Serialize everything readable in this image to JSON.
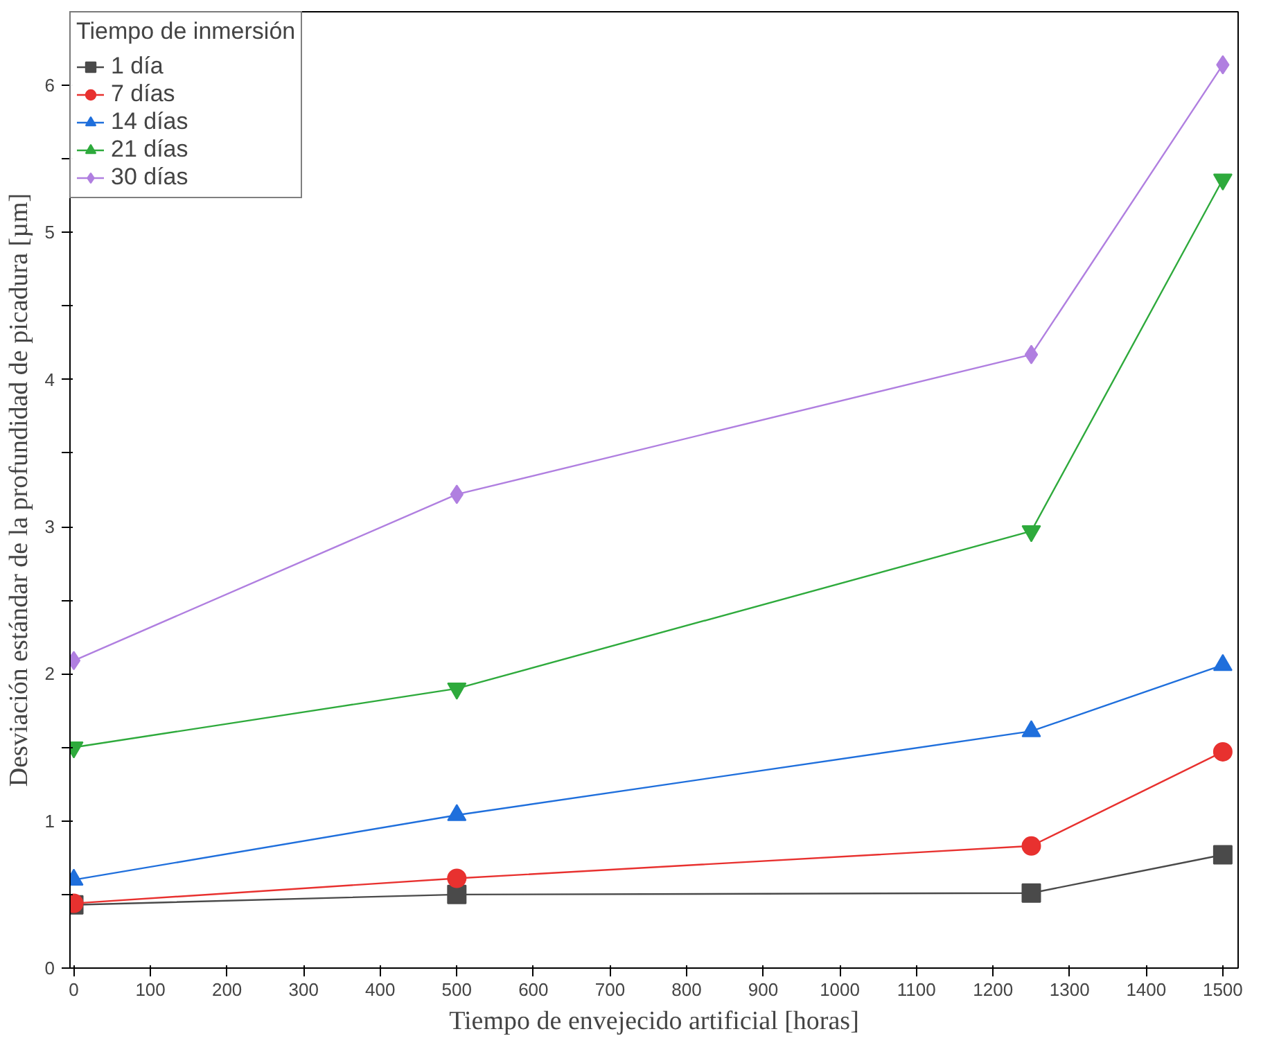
{
  "chart_data": {
    "type": "line",
    "xlabel": "Tiempo de envejecido artificial [horas]",
    "ylabel": "Desviación estándar de la profundidad de picadura [µm]",
    "legend_title": "Tiempo de inmersión",
    "x": [
      0,
      500,
      1250,
      1500
    ],
    "series": [
      {
        "name": "1 día",
        "color": "#4a4a4a",
        "marker": "square",
        "values": [
          0.43,
          0.5,
          0.51,
          0.77
        ]
      },
      {
        "name": "7 días",
        "color": "#e8312f",
        "marker": "circle",
        "values": [
          0.44,
          0.61,
          0.83,
          1.47
        ]
      },
      {
        "name": "14 días",
        "color": "#1f6fdc",
        "marker": "triangle",
        "values": [
          0.6,
          1.04,
          1.61,
          2.06
        ]
      },
      {
        "name": "21 días",
        "color": "#2eaa3c",
        "marker": "triangle",
        "values": [
          1.5,
          1.9,
          2.97,
          5.36
        ]
      },
      {
        "name": "30 días",
        "color": "#b07fe0",
        "marker": "diamond",
        "values": [
          2.09,
          3.22,
          4.17,
          6.14
        ]
      }
    ],
    "xlim": [
      -5,
      1520
    ],
    "ylim": [
      0,
      6.5
    ],
    "xticks": [
      0,
      100,
      200,
      300,
      400,
      500,
      600,
      700,
      800,
      900,
      1000,
      1100,
      1200,
      1300,
      1400,
      1500
    ],
    "yticks": [
      0,
      {
        "value": 0.5,
        "label": null
      },
      1,
      {
        "value": 1.5,
        "label": null
      },
      2,
      {
        "value": 2.5,
        "label": null
      },
      3,
      {
        "value": 3.5,
        "label": null
      },
      4,
      {
        "value": 4.5,
        "label": null
      },
      5,
      {
        "value": 5.5,
        "label": null
      },
      6
    ],
    "grid": false,
    "legend": "top left",
    "line_style": "solid"
  }
}
